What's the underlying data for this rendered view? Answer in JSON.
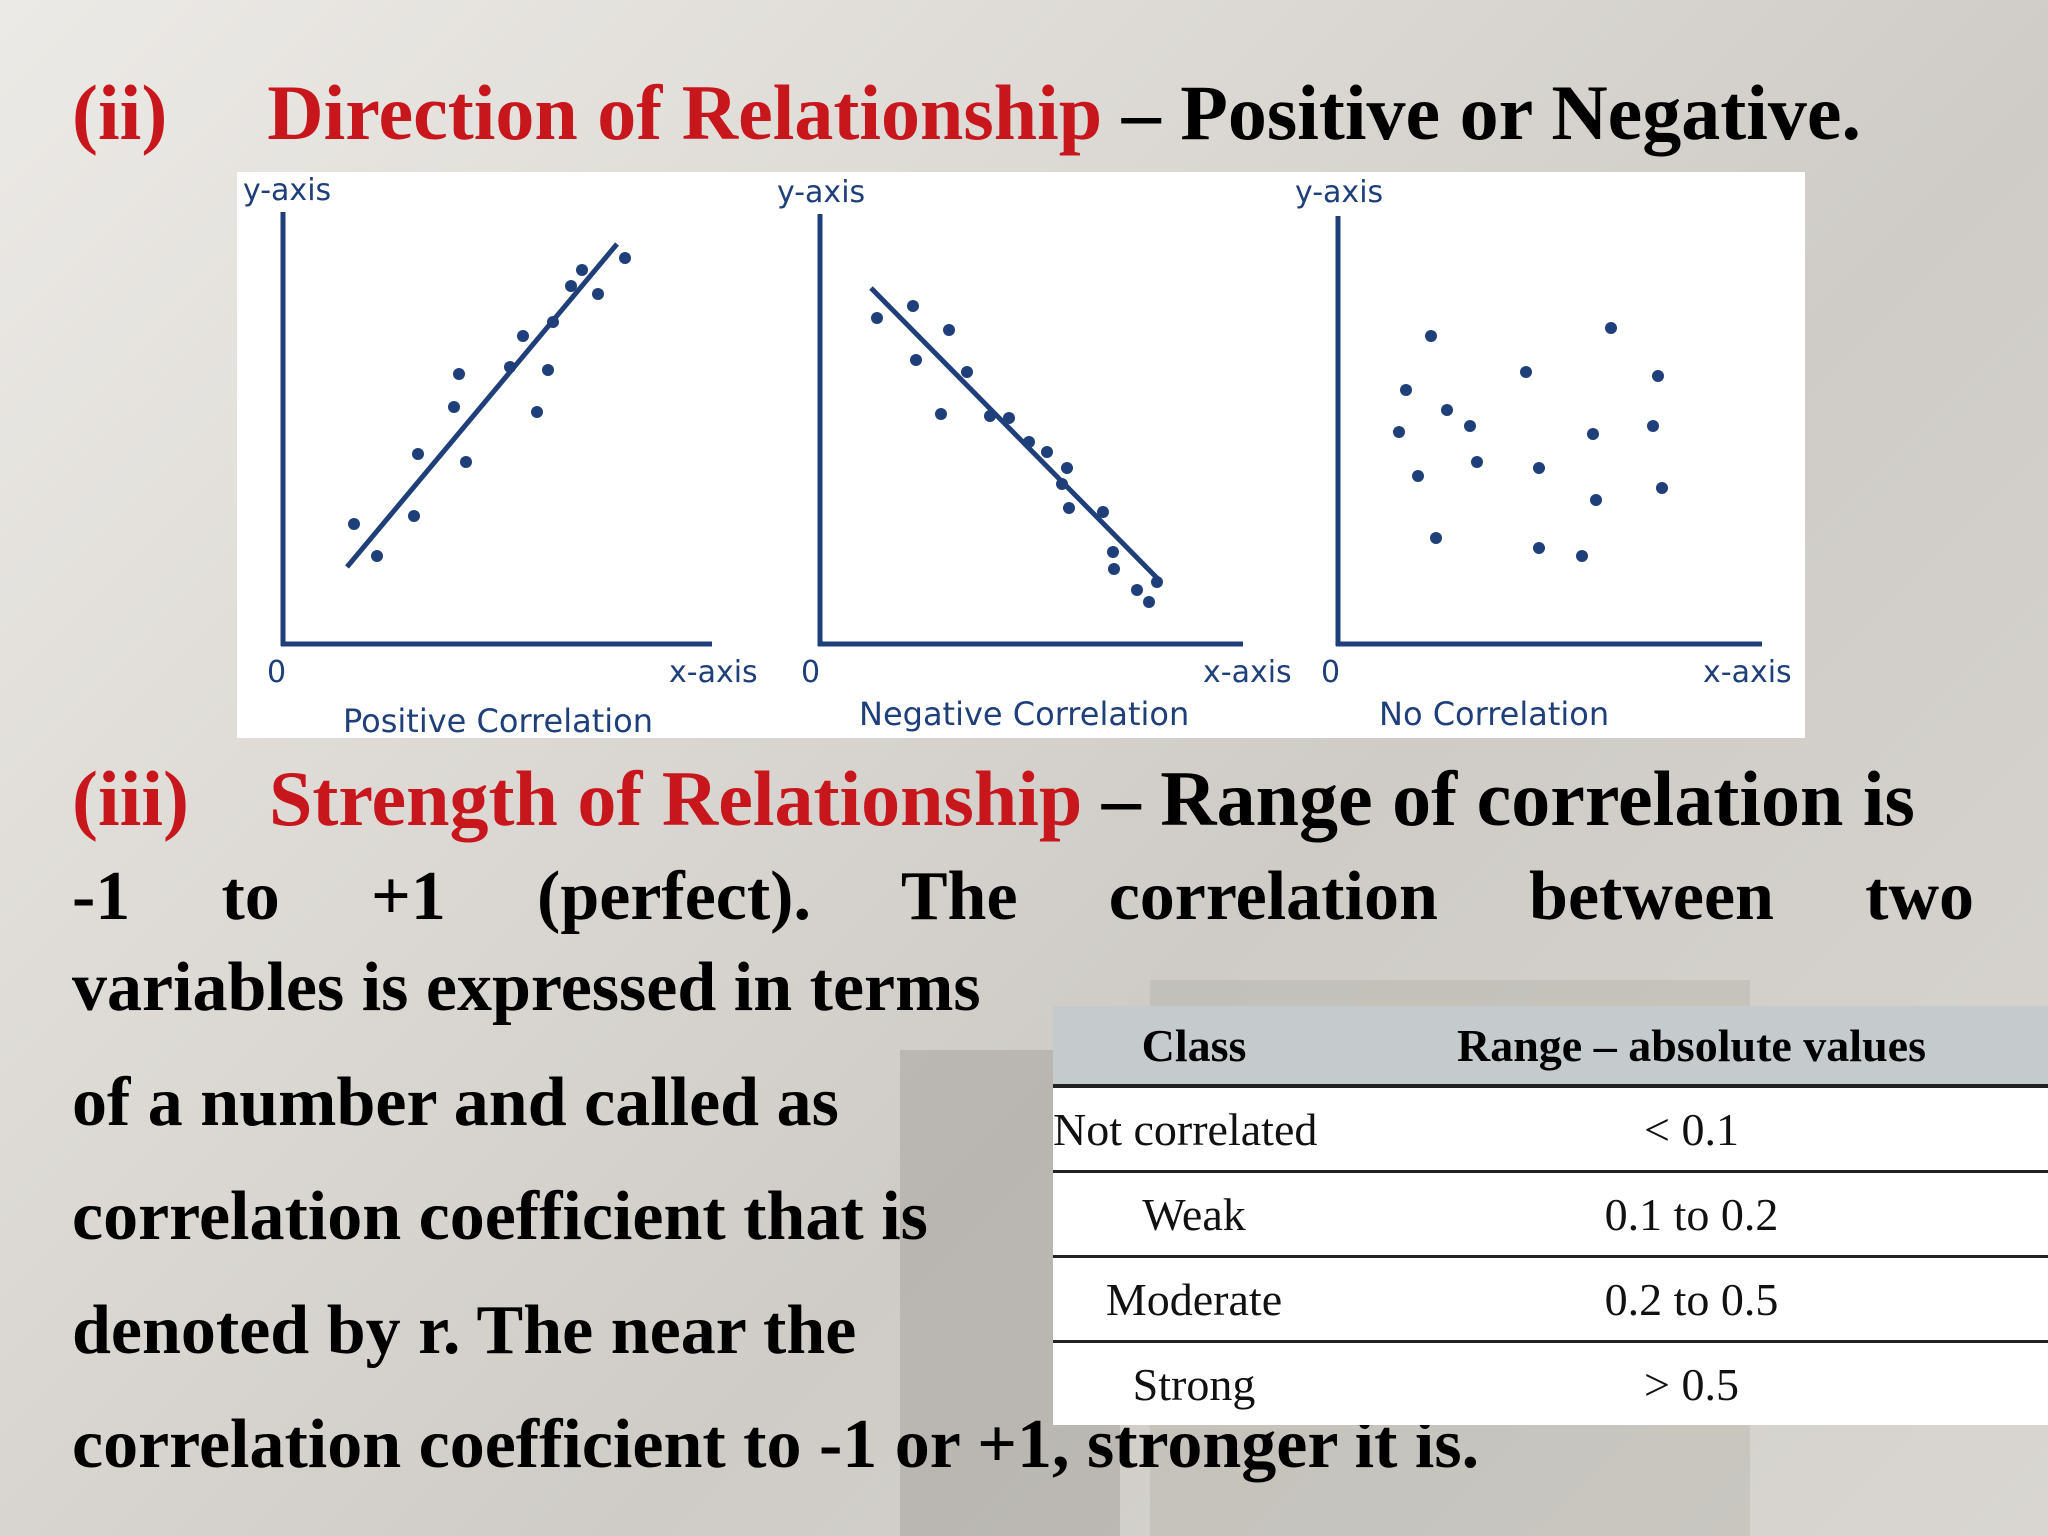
{
  "heading_direction": {
    "number": "(ii)",
    "title": "Direction of Relationship",
    "rest": "– Positive or Negative."
  },
  "charts": [
    {
      "caption": "Positive Correlation",
      "y_axis": "y-axis",
      "x_axis": "x-axis",
      "origin": "0",
      "trend": "positive"
    },
    {
      "caption": "Negative Correlation",
      "y_axis": "y-axis",
      "x_axis": "x-axis",
      "origin": "0",
      "trend": "negative"
    },
    {
      "caption": "No Correlation",
      "y_axis": "y-axis",
      "x_axis": "x-axis",
      "origin": "0",
      "trend": "none"
    }
  ],
  "heading_strength": {
    "number": "(iii)",
    "title": "Strength of Relationship",
    "rest": "– Range of correlation is"
  },
  "body": {
    "line2": "-1 to +1 (perfect). The correlation between two",
    "line3": "variables is expressed in terms",
    "line4": "of a number and called as",
    "line5": "correlation coefficient that is",
    "line6": "denoted by r. The near the",
    "line7": "correlation coefficient to -1 or +1, stronger it is."
  },
  "table": {
    "headers": [
      "Class",
      "Range – absolute values"
    ],
    "rows": [
      [
        "Not correlated",
        "< 0.1"
      ],
      [
        "Weak",
        "0.1 to 0.2"
      ],
      [
        "Moderate",
        "0.2 to 0.5"
      ],
      [
        "Strong",
        "> 0.5"
      ]
    ]
  },
  "colors": {
    "accent_red": "#c8161d",
    "plot_blue": "#1f3f7a",
    "table_header": "#c5cacc"
  }
}
